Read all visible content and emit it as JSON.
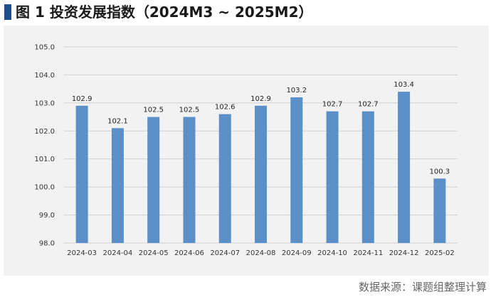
{
  "title": "图 1  投资发展指数（2024M3 ~ 2025M2）",
  "source": "数据来源：课题组整理计算",
  "colors": {
    "bar": "#5b8fc7",
    "title_marker": "#1f4e8c",
    "panel_bg": "#f2f2f2"
  },
  "chart_data": {
    "type": "bar",
    "categories": [
      "2024-03",
      "2024-04",
      "2024-05",
      "2024-06",
      "2024-07",
      "2024-08",
      "2024-09",
      "2024-10",
      "2024-11",
      "2024-12",
      "2025-02"
    ],
    "values": [
      102.9,
      102.1,
      102.5,
      102.5,
      102.6,
      102.9,
      103.2,
      102.7,
      102.7,
      103.4,
      100.3
    ],
    "data_labels": [
      "102.9",
      "102.1",
      "102.5",
      "102.5",
      "102.6",
      "102.9",
      "103.2",
      "102.7",
      "102.7",
      "103.4",
      "100.3"
    ],
    "y_ticks": [
      "98.0",
      "99.0",
      "100.0",
      "101.0",
      "102.0",
      "103.0",
      "104.0",
      "105.0"
    ],
    "ylim": [
      98,
      105
    ],
    "xlabel": "",
    "ylabel": "",
    "grid": true,
    "legend": "none"
  }
}
